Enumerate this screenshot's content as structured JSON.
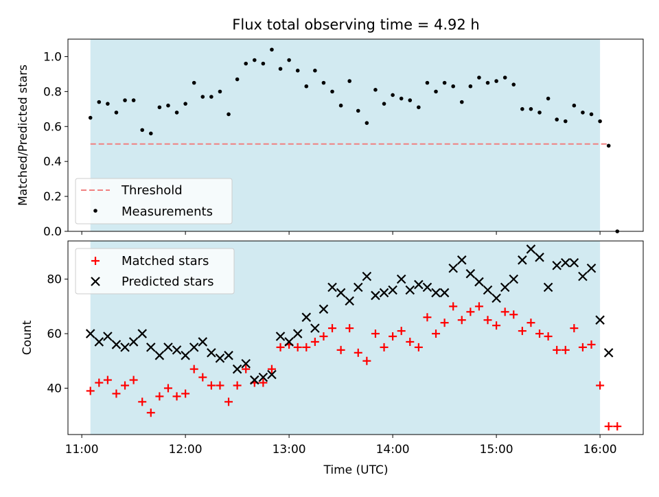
{
  "title": "Flux total observing time = 4.92 h",
  "colors": {
    "shade": "#add8e6",
    "threshold": "#f08080",
    "measurement": "#000000",
    "matched": "#ff0000",
    "predicted": "#000000"
  },
  "chart_data": [
    {
      "type": "scatter",
      "title": "Flux total observing time = 4.92 h",
      "xlabel": "",
      "ylabel": "Matched/Predicted stars",
      "x_range": [
        "10:52",
        "16:25"
      ],
      "ylim": [
        0,
        1.1
      ],
      "yticks": [
        "0.0",
        "0.2",
        "0.4",
        "0.6",
        "0.8",
        "1.0"
      ],
      "shaded_interval": [
        "11:05",
        "16:00"
      ],
      "grid": false,
      "legend_position": "bottom-left",
      "threshold": {
        "name": "Threshold",
        "value": 0.5,
        "x_range": [
          "11:05",
          "16:05"
        ],
        "style": "dashed"
      },
      "series": [
        {
          "name": "Measurements",
          "x": [
            "11:05",
            "11:10",
            "11:15",
            "11:20",
            "11:25",
            "11:30",
            "11:35",
            "11:40",
            "11:45",
            "11:50",
            "11:55",
            "12:00",
            "12:05",
            "12:10",
            "12:15",
            "12:20",
            "12:25",
            "12:30",
            "12:35",
            "12:40",
            "12:45",
            "12:50",
            "12:55",
            "13:00",
            "13:05",
            "13:10",
            "13:15",
            "13:20",
            "13:25",
            "13:30",
            "13:35",
            "13:40",
            "13:45",
            "13:50",
            "13:55",
            "14:00",
            "14:05",
            "14:10",
            "14:15",
            "14:20",
            "14:25",
            "14:30",
            "14:35",
            "14:40",
            "14:45",
            "14:50",
            "14:55",
            "15:00",
            "15:05",
            "15:10",
            "15:15",
            "15:20",
            "15:25",
            "15:30",
            "15:35",
            "15:40",
            "15:45",
            "15:50",
            "15:55",
            "16:00",
            "16:05",
            "16:10"
          ],
          "values": [
            0.65,
            0.74,
            0.73,
            0.68,
            0.75,
            0.75,
            0.58,
            0.56,
            0.71,
            0.72,
            0.68,
            0.73,
            0.85,
            0.77,
            0.77,
            0.8,
            0.67,
            0.87,
            0.96,
            0.98,
            0.96,
            1.04,
            0.93,
            0.98,
            0.92,
            0.83,
            0.92,
            0.85,
            0.8,
            0.72,
            0.86,
            0.69,
            0.62,
            0.81,
            0.73,
            0.78,
            0.76,
            0.75,
            0.71,
            0.85,
            0.8,
            0.85,
            0.83,
            0.74,
            0.83,
            0.88,
            0.85,
            0.86,
            0.88,
            0.84,
            0.7,
            0.7,
            0.68,
            0.76,
            0.64,
            0.63,
            0.72,
            0.68,
            0.67,
            0.63,
            0.49,
            0.0
          ]
        }
      ]
    },
    {
      "type": "scatter",
      "xlabel": "Time (UTC)",
      "ylabel": "Count",
      "x_range": [
        "10:52",
        "16:25"
      ],
      "xticks": [
        "11:00",
        "12:00",
        "13:00",
        "14:00",
        "15:00",
        "16:00"
      ],
      "ylim": [
        23,
        94
      ],
      "yticks": [
        "40",
        "60",
        "80"
      ],
      "shaded_interval": [
        "11:05",
        "16:00"
      ],
      "grid": false,
      "legend_position": "top-left",
      "x": [
        "11:05",
        "11:10",
        "11:15",
        "11:20",
        "11:25",
        "11:30",
        "11:35",
        "11:40",
        "11:45",
        "11:50",
        "11:55",
        "12:00",
        "12:05",
        "12:10",
        "12:15",
        "12:20",
        "12:25",
        "12:30",
        "12:35",
        "12:40",
        "12:45",
        "12:50",
        "12:55",
        "13:00",
        "13:05",
        "13:10",
        "13:15",
        "13:20",
        "13:25",
        "13:30",
        "13:35",
        "13:40",
        "13:45",
        "13:50",
        "13:55",
        "14:00",
        "14:05",
        "14:10",
        "14:15",
        "14:20",
        "14:25",
        "14:30",
        "14:35",
        "14:40",
        "14:45",
        "14:50",
        "14:55",
        "15:00",
        "15:05",
        "15:10",
        "15:15",
        "15:20",
        "15:25",
        "15:30",
        "15:35",
        "15:40",
        "15:45",
        "15:50",
        "15:55",
        "16:00",
        "16:05",
        "16:10"
      ],
      "series": [
        {
          "name": "Matched stars",
          "marker": "plus",
          "values": [
            39,
            42,
            43,
            38,
            41,
            43,
            35,
            31,
            37,
            40,
            37,
            38,
            47,
            44,
            41,
            41,
            35,
            41,
            47,
            42,
            42,
            47,
            55,
            56,
            55,
            55,
            57,
            59,
            62,
            54,
            62,
            53,
            50,
            60,
            55,
            59,
            61,
            57,
            55,
            66,
            60,
            64,
            70,
            65,
            68,
            70,
            65,
            63,
            68,
            67,
            61,
            64,
            60,
            59,
            54,
            54,
            62,
            55,
            56,
            41,
            26,
            26
          ]
        },
        {
          "name": "Predicted stars",
          "marker": "x",
          "values": [
            60,
            57,
            59,
            56,
            55,
            57,
            60,
            55,
            52,
            55,
            54,
            52,
            55,
            57,
            53,
            51,
            52,
            47,
            49,
            43,
            44,
            45,
            59,
            57,
            60,
            66,
            62,
            69,
            77,
            75,
            72,
            77,
            81,
            74,
            75,
            76,
            80,
            76,
            78,
            77,
            75,
            75,
            84,
            87,
            82,
            79,
            76,
            73,
            77,
            80,
            87,
            91,
            88,
            77,
            85,
            86,
            86,
            81,
            84,
            65,
            53,
            null
          ]
        }
      ]
    }
  ]
}
